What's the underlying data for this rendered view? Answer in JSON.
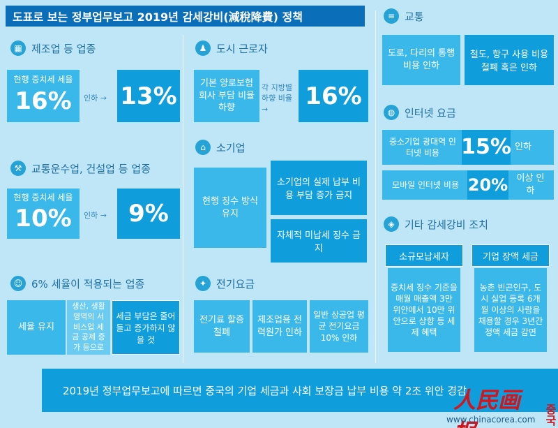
{
  "title": "도표로 보는 정부업무보고 2019년 감세강비(減稅降費) 정책",
  "manufacturing": {
    "heading": "제조업 등 업종",
    "current_label": "현행 증치세 세율",
    "current_rate": "16%",
    "arrow_label": "인하 →",
    "new_rate": "13%"
  },
  "transport_construction": {
    "heading": "교통운수업, 건설업 등 업종",
    "current_label": "현행 증치세 세율",
    "current_rate": "10%",
    "arrow_label": "인하 →",
    "new_rate": "9%"
  },
  "six_percent": {
    "heading": "6% 세율이 적용되는 업종",
    "box1": "세율 유지",
    "box2": "생산, 생활 영역의 서비스업 세금 공제 증가 등으로",
    "box3": "세금 부담은 줄어들고 증가하지 않을 것"
  },
  "urban_workers": {
    "heading": "도시 근로자",
    "box1": "기본 양로보험 회사 부담 비율 하향",
    "arrow_label": "각 지방별 하향 비율 →",
    "rate": "16%"
  },
  "small_business": {
    "heading": "소기업",
    "box1": "현행 징수 방식 유지",
    "box2": "소기업의 실제 납부 비용 부담 증가 금지",
    "box3": "자체적 미납세 징수 금지"
  },
  "electricity": {
    "heading": "전기요금",
    "box1": "전기료 할증 철폐",
    "box2": "제조업용 전력원가 인하",
    "box3": "일반 상공업 평균 전기요금 10% 인하"
  },
  "transport": {
    "heading": "교통",
    "box1": "도로, 다리의 통행 비용 인하",
    "box2": "철도, 항구 사용 비용 철폐 혹은 인하"
  },
  "internet": {
    "heading": "인터넷 요금",
    "box1_label": "중소기업 광대역 인터넷 비용",
    "box1_rate": "15%",
    "box1_suffix": "인하",
    "box2_label": "모바일 인터넷 비용",
    "box2_rate": "20%",
    "box2_suffix": "이상 인하"
  },
  "other": {
    "heading": "기타 감세강비 조치",
    "col1_title": "소규모납세자",
    "col1_body": "증치세 징수 기준을 매월 매출액 3만 위안에서 10만 위안으로 상향 등 세제 혜택",
    "col2_title": "기업 장액 세금",
    "col2_body": "농촌 빈곤인구, 도시 실업 등록 6개월 이상의 사람을 채용할 경우 3년간 정액 세금 감면"
  },
  "footer": "2019년 정부업무보고에 따르면 중국의 기업 세금과 사회 보장금 납부 비용 약 2조 위안 경감",
  "logo_text": "人民画报",
  "logo_kr": "중국",
  "site": "www.chinacorea.com",
  "colors": {
    "bg": "#bfe6f7",
    "light": "#3bb8ea",
    "dark": "#0f9ddc",
    "title_bar": "#0a6fb8",
    "accent_red": "#d4141b"
  }
}
